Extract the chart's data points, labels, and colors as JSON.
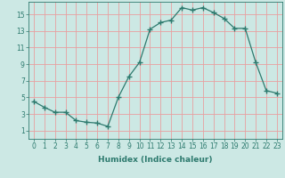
{
  "x": [
    0,
    1,
    2,
    3,
    4,
    5,
    6,
    7,
    8,
    9,
    10,
    11,
    12,
    13,
    14,
    15,
    16,
    17,
    18,
    19,
    20,
    21,
    22,
    23
  ],
  "y": [
    4.5,
    3.8,
    3.2,
    3.2,
    2.2,
    2.0,
    1.9,
    1.5,
    5.0,
    7.5,
    9.2,
    13.2,
    14.0,
    14.3,
    15.8,
    15.5,
    15.8,
    15.2,
    14.5,
    13.3,
    13.3,
    9.2,
    5.8,
    5.5
  ],
  "line_color": "#2d7a6e",
  "marker": "+",
  "marker_size": 4,
  "bg_color": "#cce8e4",
  "grid_color_major": "#e8a0a0",
  "grid_color_minor": "#e8c8c8",
  "xlabel": "Humidex (Indice chaleur)",
  "xlim": [
    -0.5,
    23.5
  ],
  "ylim": [
    0,
    16.5
  ],
  "yticks": [
    1,
    3,
    5,
    7,
    9,
    11,
    13,
    15
  ],
  "xticks": [
    0,
    1,
    2,
    3,
    4,
    5,
    6,
    7,
    8,
    9,
    10,
    11,
    12,
    13,
    14,
    15,
    16,
    17,
    18,
    19,
    20,
    21,
    22,
    23
  ],
  "tick_fontsize": 5.5,
  "xlabel_fontsize": 6.5
}
